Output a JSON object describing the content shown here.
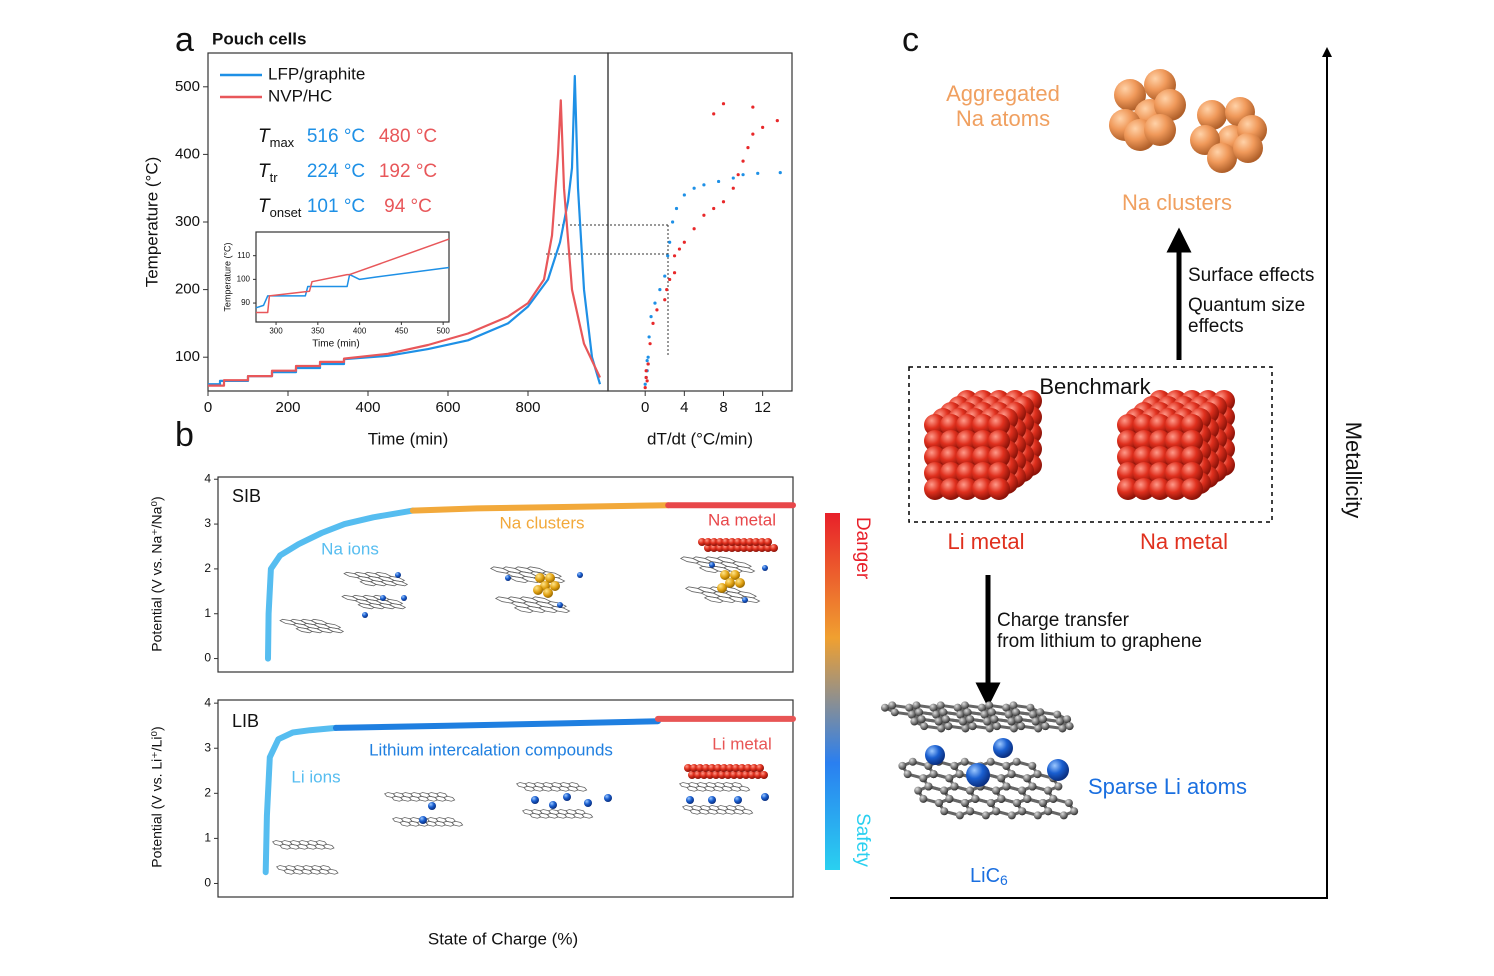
{
  "panel_labels": {
    "a": "a",
    "b": "b",
    "c": "c"
  },
  "chart_data": [
    {
      "type": "line",
      "title": "Pouch cells",
      "x_label": "Time (min)",
      "y_label": "Temperature (°C)",
      "xlim": [
        0,
        1000
      ],
      "ylim": [
        50,
        550
      ],
      "xticks": [
        0,
        200,
        400,
        600,
        800
      ],
      "yticks": [
        100,
        200,
        300,
        400,
        500
      ],
      "series": [
        {
          "name": "LFP/graphite",
          "color": "#1e90e6",
          "x": [
            0,
            30,
            30,
            100,
            100,
            160,
            160,
            220,
            220,
            280,
            280,
            340,
            340,
            450,
            550,
            650,
            750,
            800,
            850,
            880,
            900,
            910,
            917,
            925,
            940,
            960,
            980
          ],
          "values": [
            60,
            60,
            65,
            65,
            72,
            72,
            78,
            78,
            84,
            84,
            90,
            90,
            97,
            102,
            112,
            125,
            150,
            175,
            215,
            270,
            330,
            380,
            516,
            350,
            200,
            100,
            60
          ]
        },
        {
          "name": "NVP/HC",
          "color": "#e8575a",
          "x": [
            0,
            40,
            40,
            100,
            100,
            160,
            160,
            220,
            220,
            280,
            280,
            340,
            340,
            450,
            550,
            650,
            750,
            800,
            840,
            860,
            875,
            882,
            890,
            910,
            940,
            980
          ],
          "values": [
            58,
            58,
            66,
            66,
            72,
            72,
            80,
            80,
            87,
            87,
            93,
            93,
            98,
            105,
            118,
            135,
            160,
            180,
            215,
            280,
            400,
            480,
            350,
            200,
            120,
            70
          ]
        }
      ],
      "annotations": [
        {
          "symbol": "T",
          "subscript": "max",
          "values": [
            "516 °C",
            "480 °C"
          ]
        },
        {
          "symbol": "T",
          "subscript": "tr",
          "values": [
            "224 °C",
            "192 °C"
          ]
        },
        {
          "symbol": "T",
          "subscript": "onset",
          "values": [
            "101 °C",
            "94 °C"
          ]
        }
      ]
    },
    {
      "type": "scatter",
      "x_label": "dT/dt (°C/min)",
      "xlim": [
        -3.8,
        15
      ],
      "ylim": [
        50,
        550
      ],
      "xticks": [
        0,
        4,
        8,
        12
      ],
      "series": [
        {
          "color": "#1e90e6",
          "x": [
            0,
            0.2,
            0.3,
            0.4,
            0.6,
            1,
            1.5,
            2,
            2.3,
            2.5,
            2.8,
            3.2,
            4,
            5,
            6,
            7.5,
            9,
            10,
            11.5,
            13.8,
            0.1,
            0.3,
            0.2
          ],
          "values": [
            60,
            80,
            100,
            130,
            160,
            180,
            200,
            220,
            250,
            270,
            300,
            320,
            340,
            350,
            355,
            360,
            365,
            370,
            372,
            373,
            70,
            90,
            95
          ]
        },
        {
          "color": "#e8282a",
          "x": [
            0,
            0.1,
            0.3,
            0.5,
            0.8,
            1.2,
            2,
            2.2,
            2.5,
            3,
            3,
            3.5,
            4,
            5,
            6,
            7,
            8,
            9,
            9.5,
            10,
            10.5,
            11,
            12,
            13.5,
            8,
            11,
            7,
            0.2,
            0.1
          ],
          "values": [
            55,
            70,
            90,
            120,
            150,
            170,
            185,
            200,
            215,
            225,
            250,
            260,
            270,
            290,
            310,
            320,
            330,
            350,
            370,
            390,
            410,
            430,
            440,
            450,
            475,
            470,
            460,
            65,
            80
          ]
        }
      ]
    },
    {
      "type": "line",
      "x_label": "Time (min)",
      "y_label": "Temperature (°C)",
      "xlim": [
        276,
        507
      ],
      "ylim": [
        82,
        120
      ],
      "xticks": [
        300,
        350,
        400,
        450,
        500
      ],
      "yticks": [
        90,
        100,
        110
      ],
      "series": [
        {
          "color": "#1e90e6",
          "x": [
            276,
            285,
            290,
            335,
            338,
            385,
            388,
            400,
            420,
            507
          ],
          "values": [
            88,
            89,
            93,
            93,
            97,
            97,
            102,
            100,
            101,
            105
          ]
        },
        {
          "color": "#e8575a",
          "x": [
            276,
            290,
            292,
            340,
            343,
            385,
            388,
            507
          ],
          "values": [
            86,
            86,
            93,
            95,
            99,
            102,
            102,
            117
          ]
        }
      ]
    },
    {
      "type": "line",
      "label": "SIB",
      "y_label": "Potential (V vs. Na⁺/Na⁰)",
      "xlim": [
        0,
        100
      ],
      "ylim": [
        -0.3,
        4.05
      ],
      "yticks": [
        0,
        1,
        2,
        3,
        4
      ],
      "series": [
        {
          "name": "Na ions",
          "color": "#56bdf0",
          "x": [
            8.7,
            8.8,
            9.2,
            10.8,
            14,
            18,
            22,
            27,
            33.9
          ],
          "values": [
            0,
            1,
            2,
            2.3,
            2.55,
            2.8,
            3.0,
            3.15,
            3.3
          ]
        },
        {
          "name": "Na clusters",
          "color": "#f2a93b",
          "x": [
            33.9,
            45,
            60,
            78.3
          ],
          "values": [
            3.3,
            3.35,
            3.38,
            3.42
          ]
        },
        {
          "name": "Na metal",
          "color": "#e8474a",
          "x": [
            78.3,
            100
          ],
          "values": [
            3.42,
            3.42
          ]
        }
      ]
    },
    {
      "type": "line",
      "label": "LIB",
      "y_label": "Potential (V vs. Li⁺/Li⁰)",
      "x_label": "State of Charge (%)",
      "xlim": [
        0,
        100
      ],
      "ylim": [
        -0.3,
        4.07
      ],
      "yticks": [
        0,
        1,
        2,
        3,
        4
      ],
      "series": [
        {
          "name": "Li ions",
          "color": "#56bdf0",
          "x": [
            8.3,
            8.5,
            9,
            10.5,
            13,
            16,
            20.5
          ],
          "values": [
            0.25,
            1.5,
            2.8,
            3.2,
            3.35,
            3.4,
            3.45
          ]
        },
        {
          "name": "Lithium intercalation compounds",
          "color": "#1f7fe0",
          "x": [
            20.5,
            40,
            60,
            76.5
          ],
          "values": [
            3.45,
            3.5,
            3.55,
            3.6
          ]
        },
        {
          "name": "Li metal",
          "color": "#e85555",
          "x": [
            76.5,
            100
          ],
          "values": [
            3.65,
            3.65
          ]
        }
      ]
    }
  ],
  "colorbar": {
    "top": "Danger",
    "bottom": "Safety"
  },
  "diagram": {
    "aggregated": [
      "Aggregated",
      "Na atoms"
    ],
    "na_clusters": "Na clusters",
    "effects": [
      "Surface effects",
      "Quantum size",
      "effects"
    ],
    "benchmark": "Benchmark",
    "li_metal": "Li metal",
    "na_metal": "Na metal",
    "charge_transfer": [
      "Charge transfer",
      "from lithium to graphene"
    ],
    "sparse": "Sparse Li atoms",
    "lic6": {
      "text": "LiC",
      "subscript": "6"
    },
    "axis": "Metallicity"
  }
}
